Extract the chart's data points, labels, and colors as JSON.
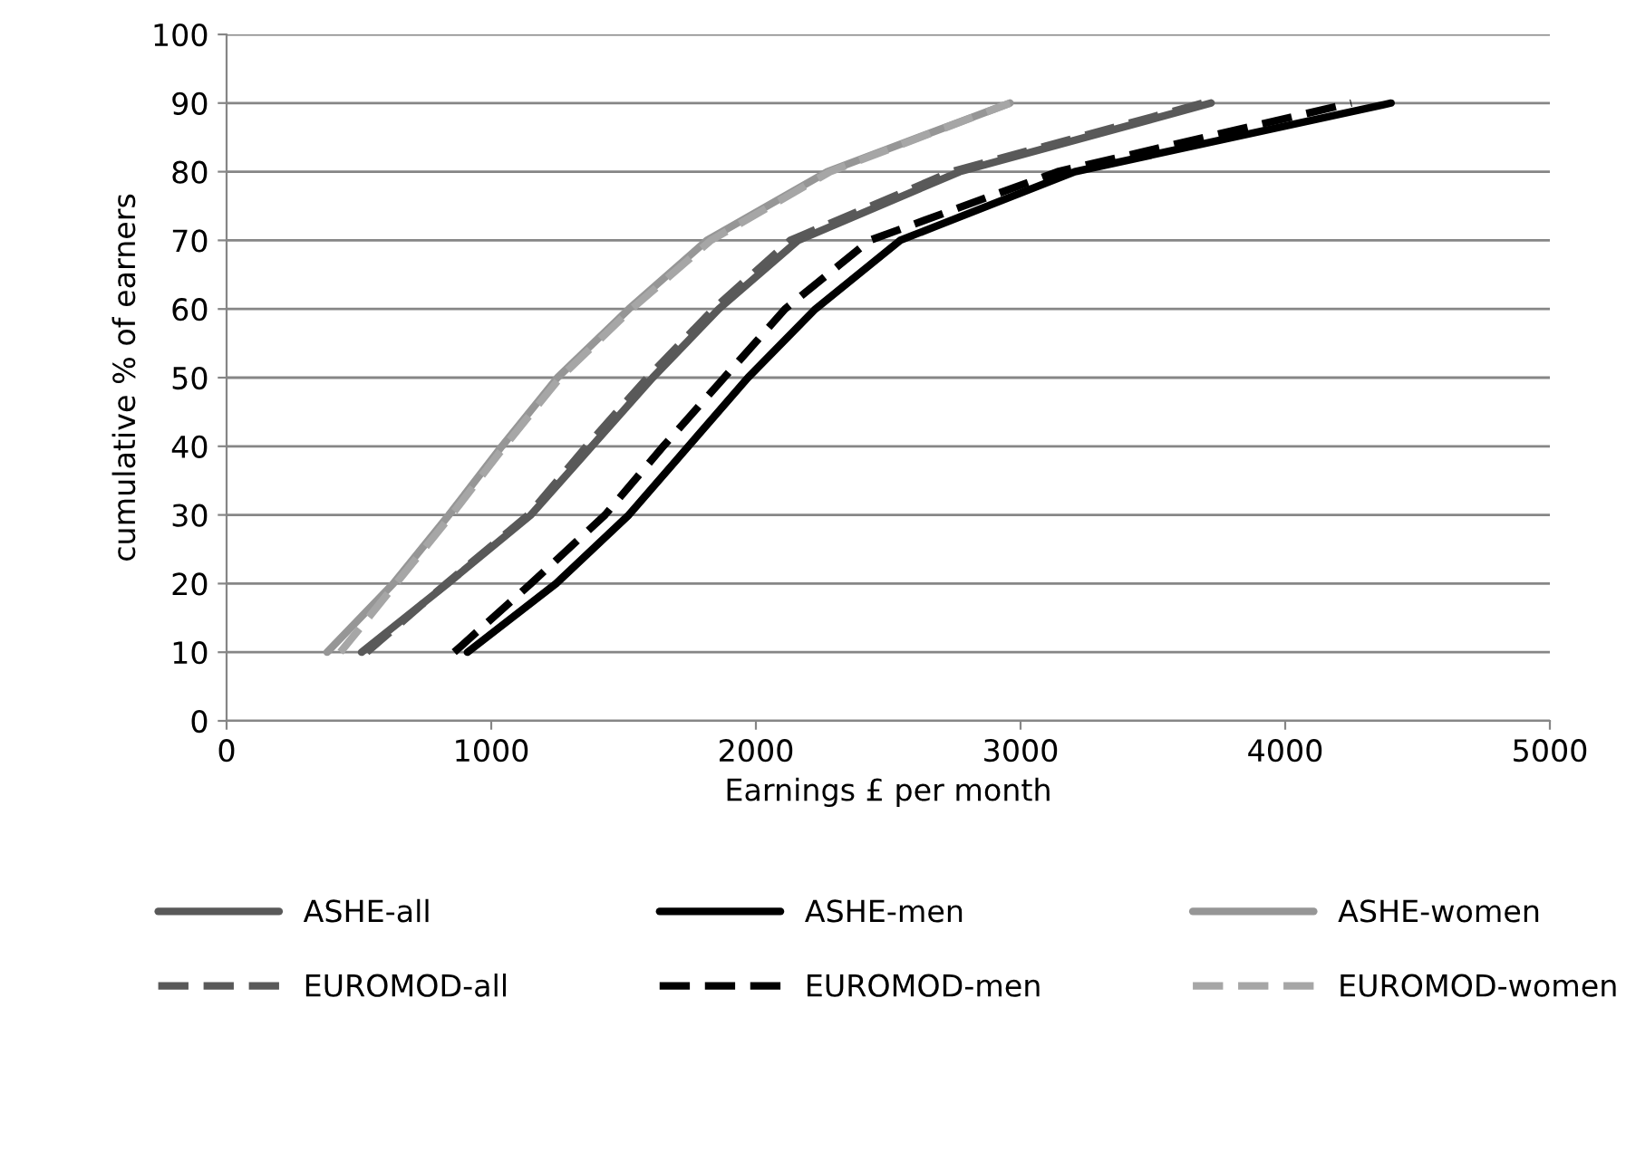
{
  "chart_data": {
    "type": "line",
    "xlabel": "Earnings £ per month",
    "ylabel": "cumulative % of earners",
    "xlim": [
      0,
      5000
    ],
    "xticks": [
      0,
      1000,
      2000,
      3000,
      4000,
      5000
    ],
    "ylim": [
      0,
      100
    ],
    "yticks": [
      0,
      10,
      20,
      30,
      40,
      50,
      60,
      70,
      80,
      90,
      100
    ],
    "grid": "y",
    "legend": "bottom",
    "marker": "none",
    "series": [
      {
        "name": "ASHE-all",
        "color": "#595959",
        "line_style": "solid",
        "x": [
          510,
          835,
          1150,
          1380,
          1610,
          1860,
          2160,
          2770,
          3720
        ],
        "values": [
          10,
          20,
          30,
          40,
          50,
          60,
          70,
          80,
          90
        ]
      },
      {
        "name": "ASHE-men",
        "color": "#000000",
        "line_style": "solid",
        "x": [
          910,
          1245,
          1520,
          1745,
          1970,
          2225,
          2545,
          3205,
          4400
        ],
        "values": [
          10,
          20,
          30,
          40,
          50,
          60,
          70,
          80,
          90
        ]
      },
      {
        "name": "ASHE-women",
        "color": "#969696",
        "line_style": "solid",
        "x": [
          380,
          630,
          840,
          1040,
          1250,
          1520,
          1815,
          2270,
          2960
        ],
        "values": [
          10,
          20,
          30,
          40,
          50,
          60,
          70,
          80,
          90
        ]
      },
      {
        "name": "EUROMOD-all",
        "color": "#595959",
        "line_style": "dashed",
        "x": [
          530,
          830,
          1140,
          1360,
          1590,
          1840,
          2130,
          2740,
          3690
        ],
        "values": [
          10,
          20,
          30,
          40,
          50,
          60,
          70,
          80,
          90
        ]
      },
      {
        "name": "EUROMOD-men",
        "color": "#000000",
        "line_style": "dashed",
        "x": [
          860,
          1150,
          1430,
          1650,
          1880,
          2110,
          2430,
          3140,
          4250
        ],
        "values": [
          10,
          20,
          30,
          40,
          50,
          60,
          70,
          80,
          90
        ]
      },
      {
        "name": "EUROMOD-women",
        "color": "#a6a6a6",
        "line_style": "dashed",
        "x": [
          430,
          640,
          850,
          1050,
          1260,
          1530,
          1830,
          2280,
          2960
        ],
        "values": [
          10,
          20,
          30,
          40,
          50,
          60,
          70,
          80,
          90
        ]
      }
    ]
  }
}
